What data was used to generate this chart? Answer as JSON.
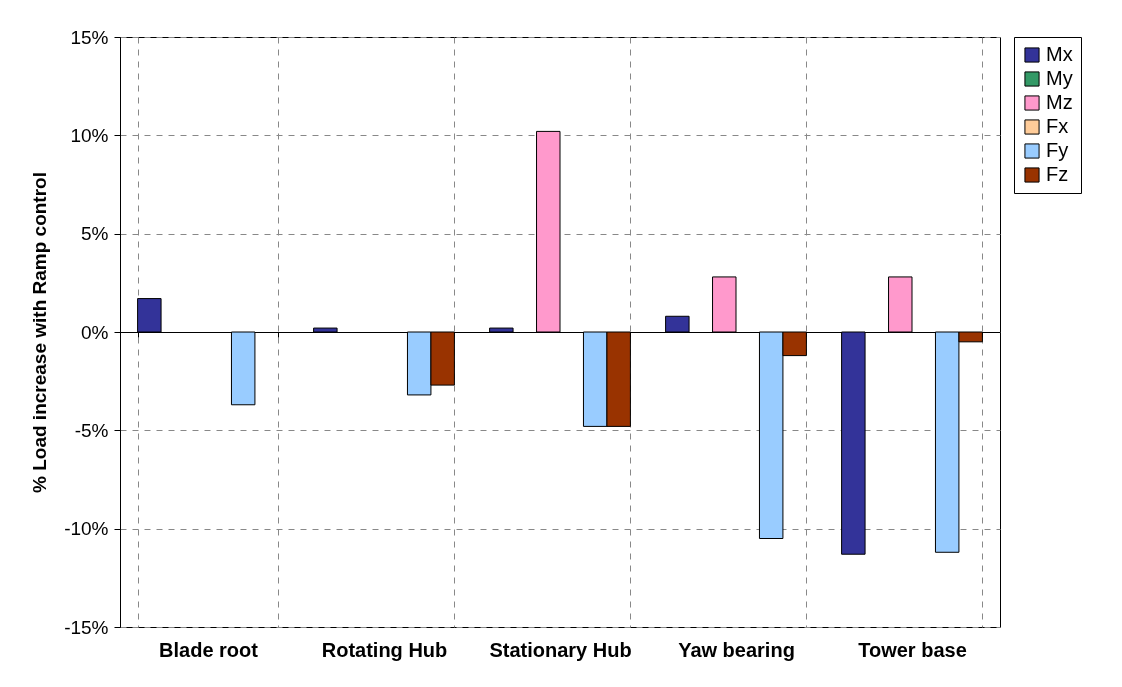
{
  "chart_data": {
    "type": "bar",
    "ylabel": "% Load increase with Ramp control",
    "categories": [
      "Blade root",
      "Rotating Hub",
      "Stationary Hub",
      "Yaw bearing",
      "Tower base"
    ],
    "series": [
      {
        "name": "Mx",
        "color": "#333399",
        "values": [
          1.7,
          0.2,
          0.2,
          0.8,
          -11.3
        ]
      },
      {
        "name": "My",
        "color": "#339966",
        "values": [
          null,
          null,
          null,
          null,
          null
        ]
      },
      {
        "name": "Mz",
        "color": "#ff99cc",
        "values": [
          null,
          null,
          10.2,
          2.8,
          2.8
        ]
      },
      {
        "name": "Fx",
        "color": "#ffcc99",
        "values": [
          null,
          null,
          null,
          null,
          null
        ]
      },
      {
        "name": "Fy",
        "color": "#99ccff",
        "values": [
          -3.7,
          -3.2,
          -4.8,
          -10.5,
          -11.2
        ]
      },
      {
        "name": "Fz",
        "color": "#993300",
        "values": [
          null,
          -2.7,
          -4.8,
          -1.2,
          -0.5
        ]
      }
    ],
    "ylim": [
      -15,
      15
    ],
    "yticks": [
      {
        "value": -15,
        "label": "-15%"
      },
      {
        "value": -10,
        "label": "-10%"
      },
      {
        "value": -5,
        "label": "-5%"
      },
      {
        "value": 0,
        "label": "0%"
      },
      {
        "value": 5,
        "label": "5%"
      },
      {
        "value": 10,
        "label": "10%"
      },
      {
        "value": 15,
        "label": "15%"
      }
    ],
    "grid": true,
    "legend": "right"
  }
}
